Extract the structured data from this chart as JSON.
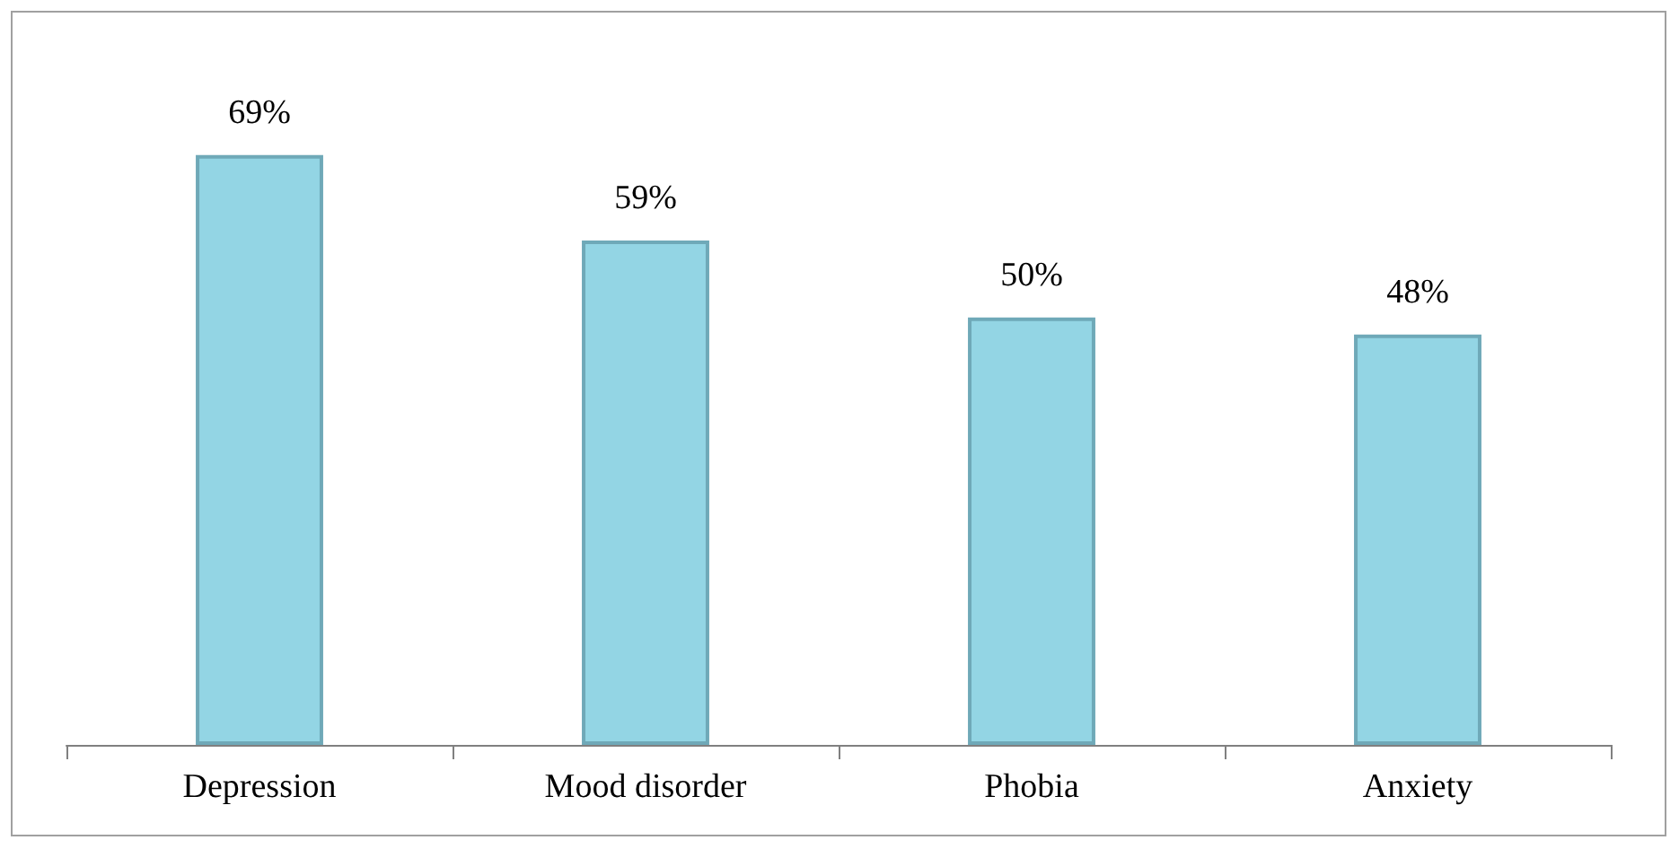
{
  "chart_data": {
    "type": "bar",
    "categories": [
      "Depression",
      "Mood disorder",
      "Phobia",
      "Anxiety"
    ],
    "values": [
      69,
      59,
      50,
      48
    ],
    "value_labels": [
      "69%",
      "59%",
      "50%",
      "48%"
    ],
    "color": "#93d5e4",
    "tick_labels": "x"
  }
}
